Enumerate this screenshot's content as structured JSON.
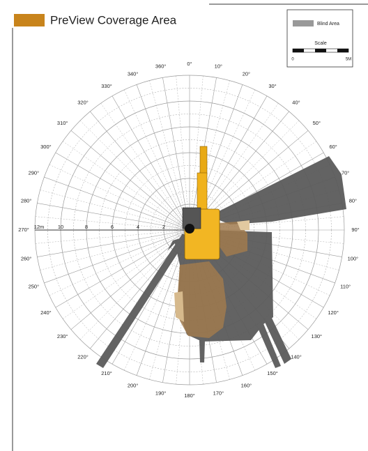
{
  "legend": {
    "title": "PreView Coverage Area"
  },
  "key": {
    "blind_area": "Blind Area",
    "scale": "Scale",
    "scale_start": "0",
    "scale_end": "5M"
  },
  "angle_labels": [
    "0°",
    "10°",
    "20°",
    "30°",
    "40°",
    "50°",
    "60°",
    "70°",
    "80°",
    "90°",
    "100°",
    "110°",
    "120°",
    "130°",
    "140°",
    "150°",
    "160°",
    "170°",
    "180°",
    "190°",
    "200°",
    "210°",
    "220°",
    "230°",
    "240°",
    "250°",
    "260°",
    "270°",
    "280°",
    "290°",
    "300°",
    "310°",
    "320°",
    "330°",
    "340°",
    "360°"
  ],
  "radial_labels": [
    "12m",
    "10",
    "8",
    "6",
    "4",
    "2"
  ]
}
